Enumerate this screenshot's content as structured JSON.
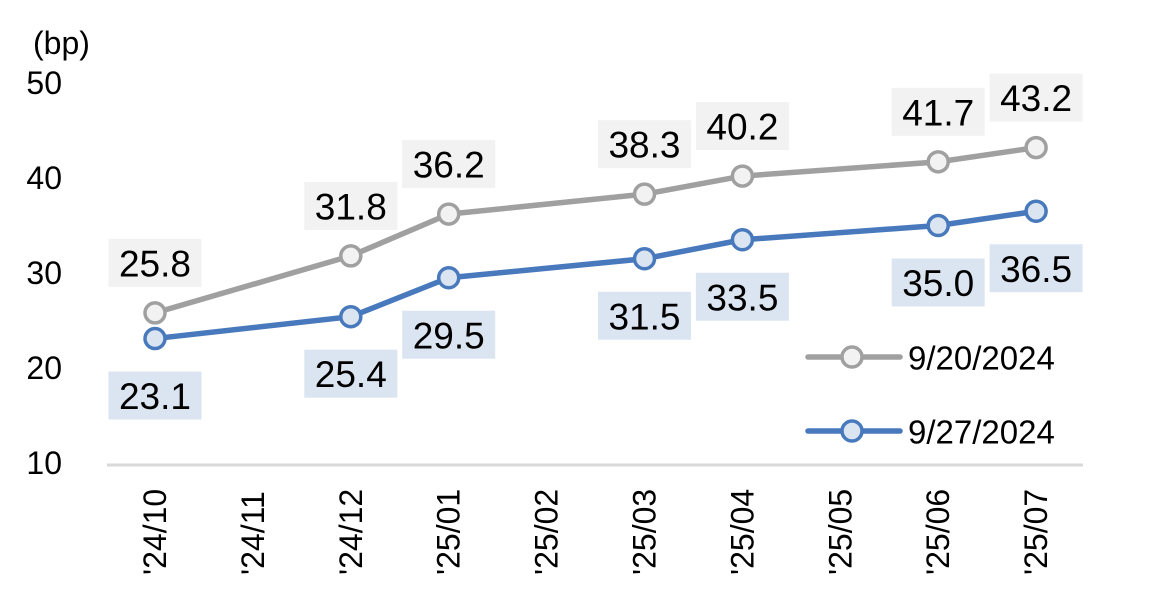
{
  "chart": {
    "unit_label": "(bp)"
  },
  "chart_data": {
    "type": "line",
    "title": "",
    "xlabel": "",
    "ylabel": "(bp)",
    "categories": [
      "'24/10",
      "'24/11",
      "'24/12",
      "'25/01",
      "'25/02",
      "'25/03",
      "'25/04",
      "'25/05",
      "'25/06",
      "'25/07"
    ],
    "yticks": [
      10,
      20,
      30,
      40,
      50
    ],
    "ylim": [
      10,
      50
    ],
    "grid": false,
    "legend_position": "inside-right-middle",
    "axis_color": "#D9D9D9",
    "text_color": "#000000",
    "series": [
      {
        "name": "9/20/2024",
        "color": "#A0A0A0",
        "marker_fill": "#F2F2F2",
        "label_bg": "#F2F2F2",
        "values": [
          25.8,
          null,
          31.8,
          36.2,
          null,
          38.3,
          40.2,
          null,
          41.7,
          43.2
        ]
      },
      {
        "name": "9/27/2024",
        "color": "#4879BD",
        "marker_fill": "#DBE5F1",
        "label_bg": "#DBE5F1",
        "values": [
          23.1,
          null,
          25.4,
          29.5,
          null,
          31.5,
          33.5,
          null,
          35.0,
          36.5
        ]
      }
    ]
  }
}
